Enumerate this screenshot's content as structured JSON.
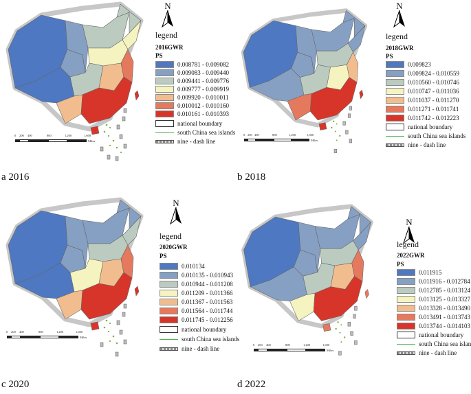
{
  "north_letter": "N",
  "legend_word": "legend",
  "scale_labels": [
    "0",
    "200",
    "400",
    "800",
    "1,200",
    "1,600"
  ],
  "scale_unit": "Miles",
  "common": {
    "national_boundary": "national boundary",
    "south_china_sea": "south China sea islands",
    "nine_dash": "nine - dash line"
  },
  "panels": [
    {
      "caption": "a 2016",
      "legend_title": "2016GWR",
      "field": "PS",
      "classes": [
        {
          "label": "0.008781 - 0.009082",
          "color": "#4e78c2"
        },
        {
          "label": "0.009083 - 0.009440",
          "color": "#86a0c4"
        },
        {
          "label": "0.009441 - 0.009776",
          "color": "#bccbc0"
        },
        {
          "label": "0.009777 - 0.009919",
          "color": "#f5f3c0"
        },
        {
          "label": "0.009920 - 0.010011",
          "color": "#f2bd8e"
        },
        {
          "label": "0.010012 - 0.010160",
          "color": "#e5795e"
        },
        {
          "label": "0.010161 - 0.010393",
          "color": "#d8352a"
        }
      ]
    },
    {
      "caption": "b 2018",
      "legend_title": "2018GWR",
      "field": "PS",
      "classes": [
        {
          "label": "0.009823",
          "color": "#4e78c2"
        },
        {
          "label": "0.009824 - 0.010559",
          "color": "#86a0c4"
        },
        {
          "label": "0.010560 - 0.010746",
          "color": "#bccbc0"
        },
        {
          "label": "0.010747 - 0.011036",
          "color": "#f5f3c0"
        },
        {
          "label": "0.011037 - 0.011270",
          "color": "#f2bd8e"
        },
        {
          "label": "0.011271 - 0.011741",
          "color": "#e5795e"
        },
        {
          "label": "0.011742 - 0.012223",
          "color": "#d8352a"
        }
      ]
    },
    {
      "caption": "c 2020",
      "legend_title": "2020GWR",
      "field": "PS",
      "classes": [
        {
          "label": "0.010134",
          "color": "#4e78c2"
        },
        {
          "label": "0.010135 - 0.010943",
          "color": "#86a0c4"
        },
        {
          "label": "0.010944 - 0.011208",
          "color": "#bccbc0"
        },
        {
          "label": "0.011209 - 0.011366",
          "color": "#f5f3c0"
        },
        {
          "label": "0.011367 - 0.011563",
          "color": "#f2bd8e"
        },
        {
          "label": "0.011564 - 0.011744",
          "color": "#e5795e"
        },
        {
          "label": "0.011745 - 0.012256",
          "color": "#d8352a"
        }
      ]
    },
    {
      "caption": "d 2022",
      "legend_title": "2022GWR",
      "field": "PS",
      "classes": [
        {
          "label": "0.011915",
          "color": "#4e78c2"
        },
        {
          "label": "0.011916 - 0.012784",
          "color": "#86a0c4"
        },
        {
          "label": "0.012785 - 0.013124",
          "color": "#bccbc0"
        },
        {
          "label": "0.013125 - 0.013327",
          "color": "#f5f3c0"
        },
        {
          "label": "0.013328 - 0.013490",
          "color": "#f2bd8e"
        },
        {
          "label": "0.013491 - 0.013743",
          "color": "#e5795e"
        },
        {
          "label": "0.013744 - 0.014103",
          "color": "#d8352a"
        }
      ]
    }
  ]
}
